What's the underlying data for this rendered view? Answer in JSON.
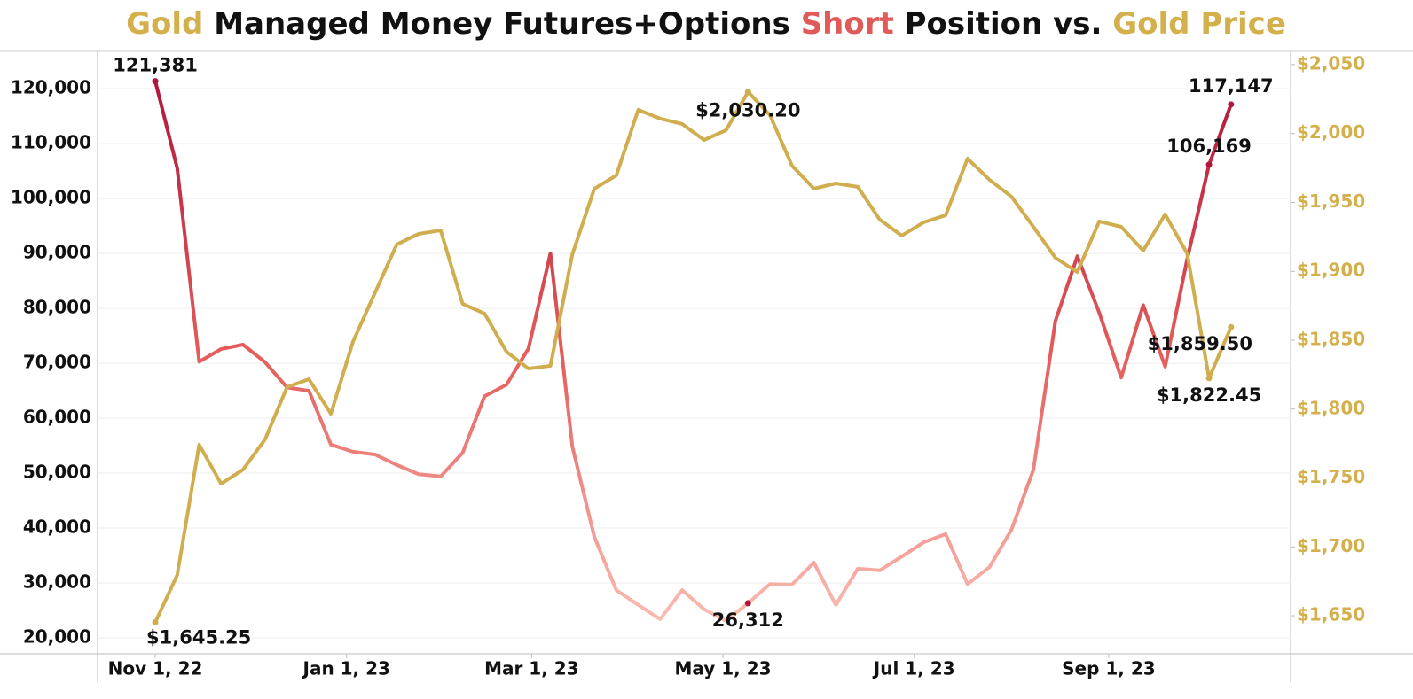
{
  "chart_data": {
    "type": "line",
    "title": [
      "Gold",
      " Managed Money Futures+Options ",
      "Short",
      " Position vs. ",
      "Gold Price"
    ],
    "title_colors": [
      "#d4b04c",
      "#111111",
      "#e05a5a",
      "#111111",
      "#d4b04c"
    ],
    "x": [
      0,
      7,
      14,
      21,
      28,
      35,
      42,
      49,
      56,
      63,
      70,
      77,
      84,
      91,
      98,
      105,
      112,
      119,
      126,
      133,
      140,
      147,
      154,
      161,
      168,
      175,
      182,
      189,
      196,
      203,
      210,
      217,
      224,
      231,
      238,
      245,
      252,
      259,
      266,
      273,
      280,
      287,
      294,
      301,
      308,
      315,
      322,
      329,
      336,
      343
    ],
    "xlim": [
      -18.4,
      362
    ],
    "xticks": [
      {
        "value": 0,
        "label": "Nov 1, 22"
      },
      {
        "value": 61,
        "label": "Jan 1, 23"
      },
      {
        "value": 120,
        "label": "Mar 1, 23"
      },
      {
        "value": 181,
        "label": "May 1, 23"
      },
      {
        "value": 242,
        "label": "Jul 1, 23"
      },
      {
        "value": 304,
        "label": "Sep 1, 23"
      }
    ],
    "ylim": [
      17100,
      126800
    ],
    "yticks": [
      {
        "value": 20000,
        "label": "20,000"
      },
      {
        "value": 30000,
        "label": "30,000"
      },
      {
        "value": 40000,
        "label": "40,000"
      },
      {
        "value": 50000,
        "label": "50,000"
      },
      {
        "value": 60000,
        "label": "60,000"
      },
      {
        "value": 70000,
        "label": "70,000"
      },
      {
        "value": 80000,
        "label": "80,000"
      },
      {
        "value": 90000,
        "label": "90,000"
      },
      {
        "value": 100000,
        "label": "100,000"
      },
      {
        "value": 110000,
        "label": "110,000"
      },
      {
        "value": 120000,
        "label": "120,000"
      }
    ],
    "y2lim": [
      1622.4,
      2059.6
    ],
    "y2ticks": [
      {
        "value": 1650,
        "label": "$1,650"
      },
      {
        "value": 1700,
        "label": "$1,700"
      },
      {
        "value": 1750,
        "label": "$1,750"
      },
      {
        "value": 1800,
        "label": "$1,800"
      },
      {
        "value": 1850,
        "label": "$1,850"
      },
      {
        "value": 1900,
        "label": "$1,900"
      },
      {
        "value": 1950,
        "label": "$1,950"
      },
      {
        "value": 2000,
        "label": "$2,000"
      },
      {
        "value": 2050,
        "label": "$2,050"
      }
    ],
    "grid": true,
    "series": [
      {
        "color_scale": [
          "#f9bcb1",
          "#e35c5a",
          "#b0163b"
        ],
        "values": [
          121381,
          105500,
          70300,
          72600,
          73400,
          70200,
          65600,
          65000,
          55200,
          53900,
          53400,
          51500,
          49800,
          49400,
          53700,
          64000,
          66100,
          72700,
          90000,
          54800,
          38400,
          28700,
          26000,
          23400,
          28700,
          25200,
          23100,
          26312,
          29800,
          29700,
          33700,
          26000,
          32600,
          32300,
          34800,
          37400,
          38900,
          29800,
          32900,
          39700,
          50600,
          77700,
          89500,
          79200,
          67400,
          80600,
          69400,
          88900,
          106169,
          117147
        ],
        "value_labels": [
          "121,381",
          null,
          null,
          null,
          null,
          null,
          null,
          null,
          null,
          null,
          null,
          null,
          null,
          null,
          null,
          null,
          null,
          null,
          null,
          null,
          null,
          null,
          null,
          null,
          null,
          null,
          null,
          "26,312",
          null,
          null,
          null,
          null,
          null,
          null,
          null,
          null,
          null,
          null,
          null,
          null,
          null,
          null,
          null,
          null,
          null,
          null,
          null,
          null,
          "106,169",
          "117,147"
        ]
      },
      {
        "color": "#d0ae4f",
        "axis": "y2",
        "values": [
          1645.25,
          1679.6,
          1774.1,
          1745.8,
          1756.1,
          1778.0,
          1815.9,
          1821.7,
          1796.6,
          1848.7,
          1884.1,
          1919.5,
          1927.2,
          1929.7,
          1876.4,
          1869.3,
          1841.6,
          1829.4,
          1831.4,
          1912.4,
          1960.0,
          1969.6,
          2017.2,
          2010.8,
          2006.9,
          1995.3,
          2002.4,
          2030.2,
          2013.3,
          1976.7,
          1960.0,
          1963.8,
          1961.3,
          1937.5,
          1925.9,
          1935.5,
          1940.7,
          1981.8,
          1966.4,
          1954.2,
          1932.3,
          1909.8,
          1899.5,
          1936.2,
          1932.3,
          1915.0,
          1941.3,
          1913.0,
          1822.45,
          1859.5
        ],
        "value_labels": [
          "$1,645.25",
          null,
          null,
          null,
          null,
          null,
          null,
          null,
          null,
          null,
          null,
          null,
          null,
          null,
          null,
          null,
          null,
          null,
          null,
          null,
          null,
          null,
          null,
          null,
          null,
          null,
          null,
          "$2,030.20",
          null,
          null,
          null,
          null,
          null,
          null,
          null,
          null,
          null,
          null,
          null,
          null,
          null,
          null,
          null,
          null,
          null,
          null,
          null,
          null,
          "$1,822.45",
          "$1,859.50"
        ]
      }
    ]
  }
}
